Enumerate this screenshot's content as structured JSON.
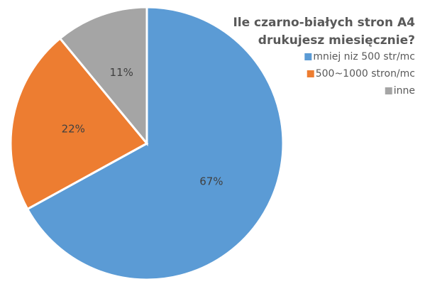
{
  "chart_data": {
    "type": "pie",
    "title": [
      "Ile czarno-białych stron A4",
      "drukujesz miesięcznie?"
    ],
    "categories": [
      "mniej niz 500 str/mc",
      "500~1000 stron/mc",
      "inne"
    ],
    "values": [
      67,
      22,
      11
    ],
    "value_labels": [
      "67%",
      "22%",
      "11%"
    ],
    "colors": [
      "#5b9bd5",
      "#ed7d31",
      "#a5a5a5"
    ],
    "legend": "top-right"
  }
}
